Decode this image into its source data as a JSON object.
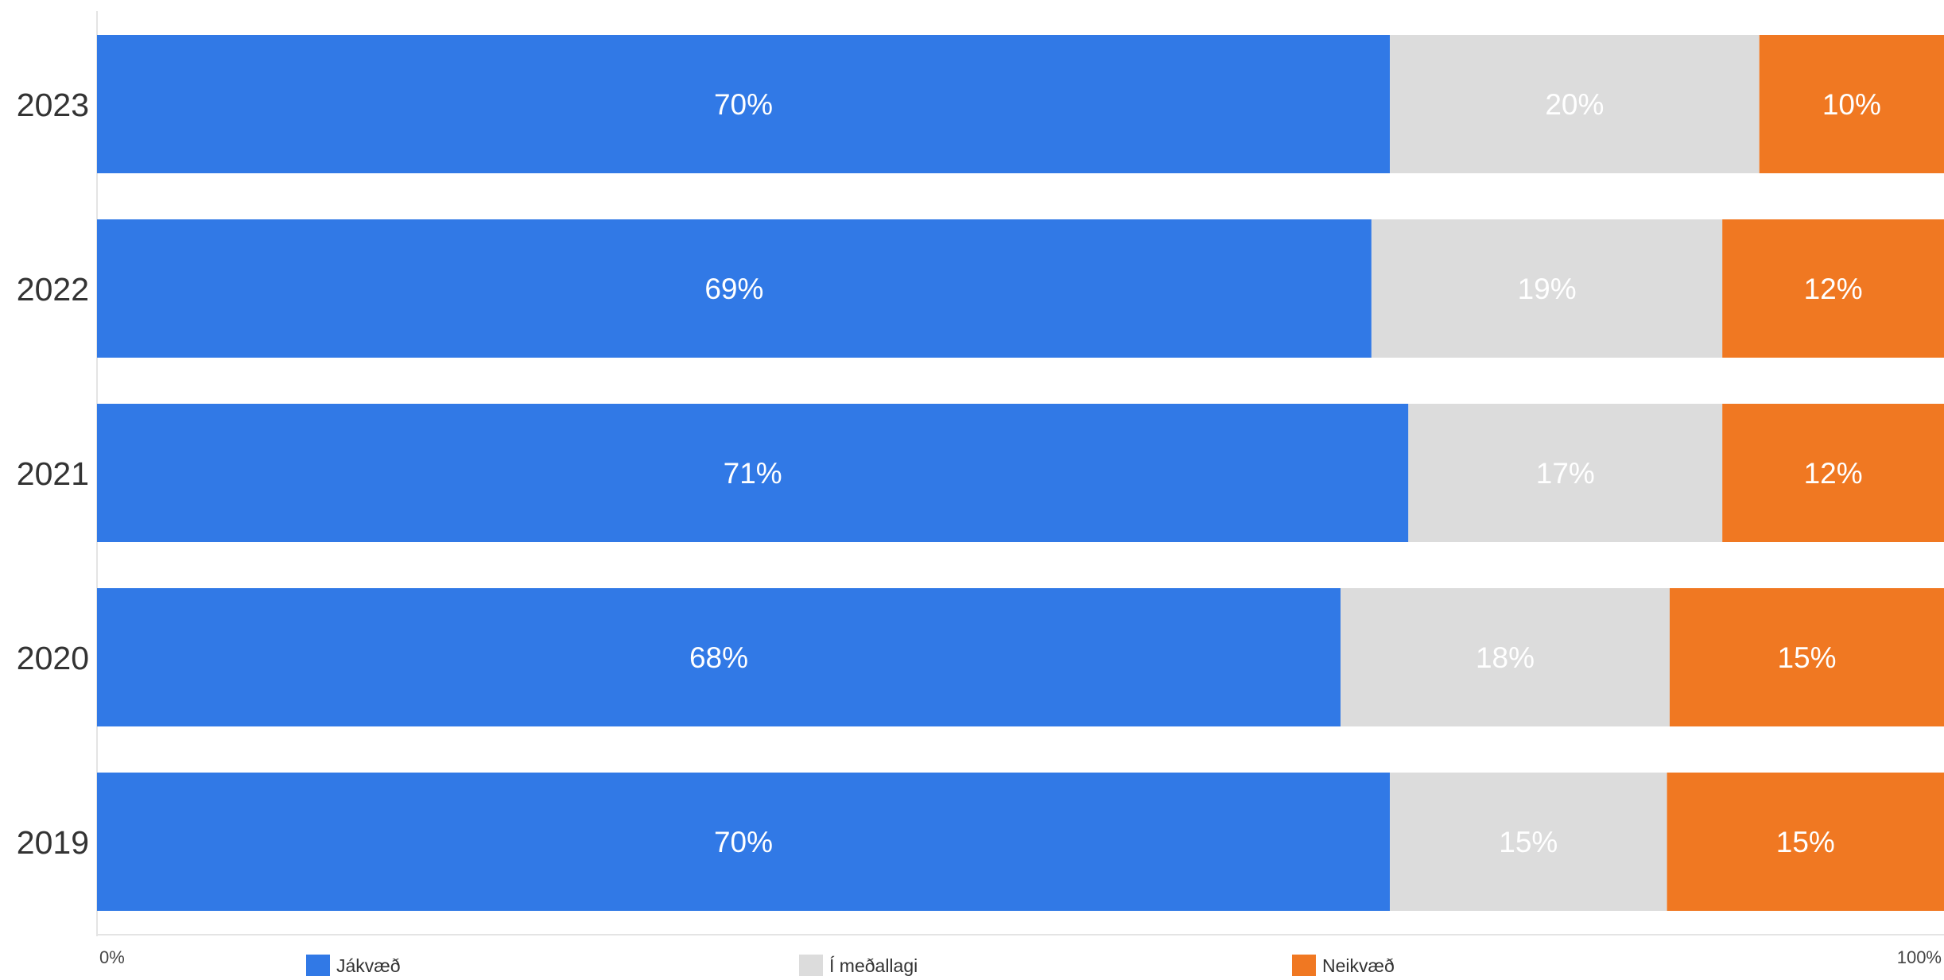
{
  "chart_data": {
    "type": "bar",
    "orientation": "horizontal",
    "stacked": "percent",
    "categories": [
      "2023",
      "2022",
      "2021",
      "2020",
      "2019"
    ],
    "series": [
      {
        "name": "Jákvæð",
        "color": "#3179e6",
        "label_color": "#ffffff",
        "values": [
          70,
          69,
          71,
          68,
          70
        ],
        "labels": [
          "70%",
          "69%",
          "71%",
          "68%",
          "70%"
        ]
      },
      {
        "name": "Í meðallagi",
        "color": "#dcdcdc",
        "label_color": "#ffffff",
        "values": [
          20,
          19,
          17,
          18,
          15
        ],
        "labels": [
          "20%",
          "19%",
          "17%",
          "18%",
          "15%"
        ]
      },
      {
        "name": "Neikvæð",
        "color": "#f07822",
        "label_color": "#ffffff",
        "values": [
          10,
          12,
          12,
          15,
          15
        ],
        "labels": [
          "10%",
          "12%",
          "12%",
          "15%",
          "15%"
        ]
      }
    ],
    "xlim": [
      0,
      100
    ],
    "x_tick_labels": [
      "0%",
      "100%"
    ],
    "legend_position": "bottom",
    "grid": false
  }
}
